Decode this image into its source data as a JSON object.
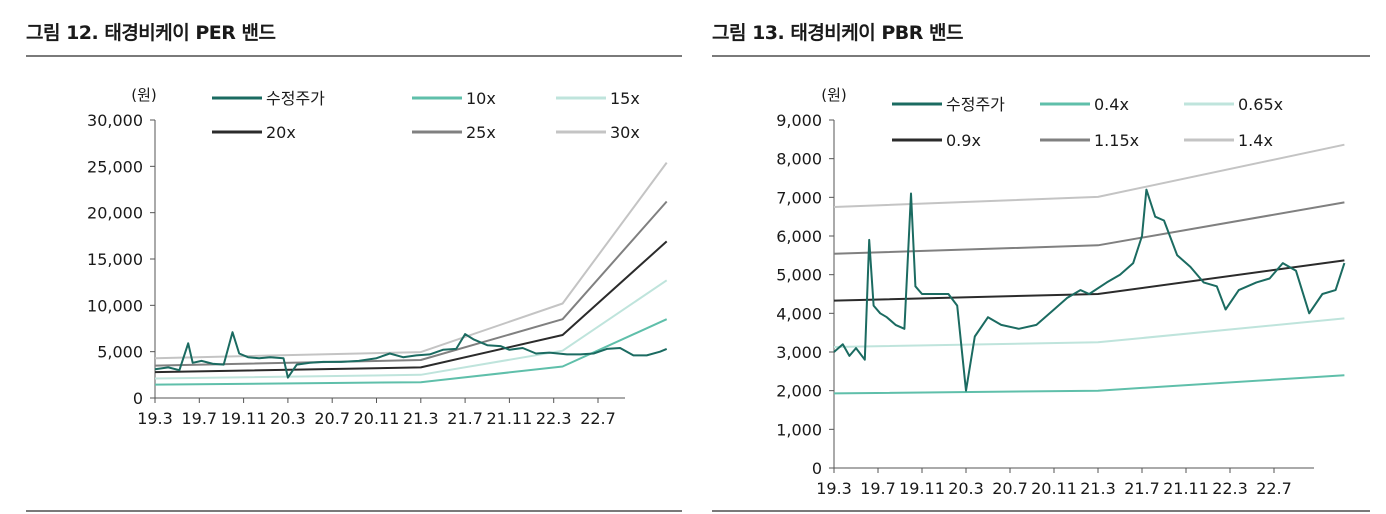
{
  "figures": [
    {
      "title": "그림 12. 태경비케이 PER 밴드",
      "chart_data": {
        "type": "line",
        "unit_label": "(원)",
        "ylim": [
          0,
          30000
        ],
        "y_ticks": [
          "0",
          "5,000",
          "10,000",
          "15,000",
          "20,000",
          "25,000",
          "30,000"
        ],
        "x_ticks": [
          "19.3",
          "19.7",
          "19.11",
          "20.3",
          "20.7",
          "20.11",
          "21.3",
          "21.7",
          "21.11",
          "22.3",
          "22.7"
        ],
        "legend": [
          "수정주가",
          "10x",
          "15x",
          "20x",
          "25x",
          "30x"
        ],
        "series": [
          {
            "name": "수정주가",
            "color": "#1b6b61",
            "width": 2,
            "points": [
              [
                0,
                3100
              ],
              [
                0.3,
                3300
              ],
              [
                0.55,
                3000
              ],
              [
                0.75,
                5900
              ],
              [
                0.85,
                3800
              ],
              [
                1.05,
                4000
              ],
              [
                1.3,
                3700
              ],
              [
                1.55,
                3600
              ],
              [
                1.75,
                7100
              ],
              [
                1.9,
                4800
              ],
              [
                2.1,
                4400
              ],
              [
                2.35,
                4300
              ],
              [
                2.6,
                4400
              ],
              [
                2.9,
                4300
              ],
              [
                3.0,
                2200
              ],
              [
                3.2,
                3600
              ],
              [
                3.5,
                3800
              ],
              [
                3.8,
                3900
              ],
              [
                4.2,
                3900
              ],
              [
                4.6,
                4000
              ],
              [
                5.0,
                4300
              ],
              [
                5.3,
                4800
              ],
              [
                5.6,
                4400
              ],
              [
                5.9,
                4600
              ],
              [
                6.2,
                4700
              ],
              [
                6.5,
                5200
              ],
              [
                6.8,
                5300
              ],
              [
                7.0,
                6900
              ],
              [
                7.2,
                6300
              ],
              [
                7.5,
                5700
              ],
              [
                7.8,
                5600
              ],
              [
                8.0,
                5200
              ],
              [
                8.3,
                5400
              ],
              [
                8.6,
                4800
              ],
              [
                8.9,
                4900
              ],
              [
                9.3,
                4700
              ],
              [
                9.6,
                4700
              ],
              [
                9.9,
                4800
              ],
              [
                10.2,
                5300
              ],
              [
                10.5,
                5400
              ],
              [
                10.8,
                4600
              ],
              [
                11.1,
                4600
              ],
              [
                11.4,
                5000
              ],
              [
                11.55,
                5300
              ]
            ]
          },
          {
            "name": "10x",
            "color": "#5fbfaa",
            "width": 2,
            "points": [
              [
                0,
                1450
              ],
              [
                6.0,
                1700
              ],
              [
                9.2,
                3400
              ],
              [
                11.55,
                8500
              ]
            ]
          },
          {
            "name": "15x",
            "color": "#bfe4dc",
            "width": 2,
            "points": [
              [
                0,
                2100
              ],
              [
                6.0,
                2500
              ],
              [
                9.2,
                5100
              ],
              [
                11.55,
                12700
              ]
            ]
          },
          {
            "name": "20x",
            "color": "#2b2b2b",
            "width": 2,
            "points": [
              [
                0,
                2800
              ],
              [
                6.0,
                3300
              ],
              [
                9.2,
                6800
              ],
              [
                11.55,
                16900
              ]
            ]
          },
          {
            "name": "25x",
            "color": "#808080",
            "width": 2,
            "points": [
              [
                0,
                3500
              ],
              [
                6.0,
                4100
              ],
              [
                9.2,
                8500
              ],
              [
                11.55,
                21200
              ]
            ]
          },
          {
            "name": "30x",
            "color": "#c4c4c4",
            "width": 2,
            "points": [
              [
                0,
                4300
              ],
              [
                6.0,
                4950
              ],
              [
                9.2,
                10200
              ],
              [
                11.55,
                25400
              ]
            ]
          }
        ]
      }
    },
    {
      "title": "그림 13. 태경비케이 PBR 밴드",
      "chart_data": {
        "type": "line",
        "unit_label": "(원)",
        "ylim": [
          0,
          9000
        ],
        "y_ticks": [
          "0",
          "1,000",
          "2,000",
          "3,000",
          "4,000",
          "5,000",
          "6,000",
          "7,000",
          "8,000",
          "9,000"
        ],
        "x_ticks": [
          "19.3",
          "19.7",
          "19.11",
          "20.3",
          "20.7",
          "20.11",
          "21.3",
          "21.7",
          "21.11",
          "22.3",
          "22.7"
        ],
        "legend": [
          "수정주가",
          "0.4x",
          "0.65x",
          "0.9x",
          "1.15x",
          "1.4x"
        ],
        "series": [
          {
            "name": "수정주가",
            "color": "#1b6b61",
            "width": 2,
            "points": [
              [
                0,
                3000
              ],
              [
                0.2,
                3200
              ],
              [
                0.35,
                2900
              ],
              [
                0.5,
                3100
              ],
              [
                0.7,
                2800
              ],
              [
                0.8,
                5900
              ],
              [
                0.9,
                4200
              ],
              [
                1.05,
                4000
              ],
              [
                1.2,
                3900
              ],
              [
                1.4,
                3700
              ],
              [
                1.6,
                3600
              ],
              [
                1.75,
                7100
              ],
              [
                1.85,
                4700
              ],
              [
                2.0,
                4500
              ],
              [
                2.3,
                4500
              ],
              [
                2.6,
                4500
              ],
              [
                2.8,
                4200
              ],
              [
                3.0,
                2000
              ],
              [
                3.2,
                3400
              ],
              [
                3.5,
                3900
              ],
              [
                3.8,
                3700
              ],
              [
                4.2,
                3600
              ],
              [
                4.6,
                3700
              ],
              [
                5.0,
                4100
              ],
              [
                5.3,
                4400
              ],
              [
                5.6,
                4600
              ],
              [
                5.8,
                4500
              ],
              [
                6.2,
                4800
              ],
              [
                6.5,
                5000
              ],
              [
                6.8,
                5300
              ],
              [
                7.0,
                6000
              ],
              [
                7.1,
                7200
              ],
              [
                7.3,
                6500
              ],
              [
                7.5,
                6400
              ],
              [
                7.8,
                5500
              ],
              [
                8.1,
                5200
              ],
              [
                8.4,
                4800
              ],
              [
                8.7,
                4700
              ],
              [
                8.9,
                4100
              ],
              [
                9.2,
                4600
              ],
              [
                9.6,
                4800
              ],
              [
                9.9,
                4900
              ],
              [
                10.2,
                5300
              ],
              [
                10.5,
                5100
              ],
              [
                10.8,
                4000
              ],
              [
                11.1,
                4500
              ],
              [
                11.4,
                4600
              ],
              [
                11.6,
                5300
              ]
            ]
          },
          {
            "name": "0.4x",
            "color": "#5fbfaa",
            "width": 2,
            "points": [
              [
                0,
                1930
              ],
              [
                6.0,
                2000
              ],
              [
                11.6,
                2400
              ]
            ]
          },
          {
            "name": "0.65x",
            "color": "#bfe4dc",
            "width": 2,
            "points": [
              [
                0,
                3130
              ],
              [
                6.0,
                3250
              ],
              [
                11.6,
                3870
              ]
            ]
          },
          {
            "name": "0.9x",
            "color": "#2b2b2b",
            "width": 2,
            "points": [
              [
                0,
                4330
              ],
              [
                6.0,
                4500
              ],
              [
                11.6,
                5370
              ]
            ]
          },
          {
            "name": "1.15x",
            "color": "#808080",
            "width": 2,
            "points": [
              [
                0,
                5540
              ],
              [
                6.0,
                5760
              ],
              [
                11.6,
                6870
              ]
            ]
          },
          {
            "name": "1.4x",
            "color": "#c4c4c4",
            "width": 2,
            "points": [
              [
                0,
                6750
              ],
              [
                6.0,
                7010
              ],
              [
                11.6,
                8360
              ]
            ]
          }
        ]
      }
    }
  ]
}
